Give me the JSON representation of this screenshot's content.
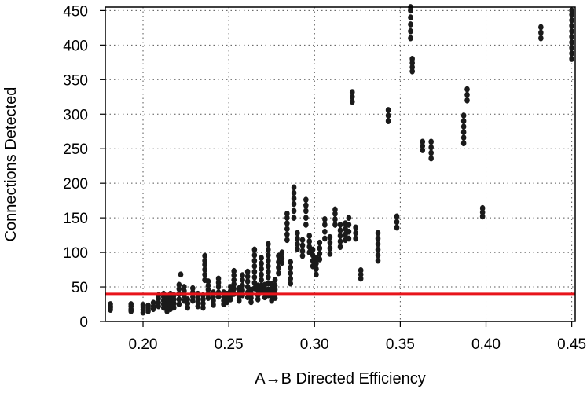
{
  "chart_data": {
    "type": "scatter",
    "xlabel": "A→B Directed Efficiency",
    "ylabel": "Connections Detected",
    "xlim": [
      0.178,
      0.452
    ],
    "ylim": [
      0,
      455
    ],
    "x_ticks": [
      0.2,
      0.25,
      0.3,
      0.35,
      0.4,
      0.45
    ],
    "x_tick_labels": [
      "0.20",
      "0.25",
      "0.30",
      "0.35",
      "0.40",
      "0.45"
    ],
    "y_ticks": [
      0,
      50,
      100,
      150,
      200,
      250,
      300,
      350,
      400,
      450
    ],
    "y_tick_labels": [
      "0",
      "50",
      "100",
      "150",
      "200",
      "250",
      "300",
      "350",
      "400",
      "450"
    ],
    "grid": "dotted",
    "threshold_line": {
      "y": 40,
      "color": "#e8141b"
    },
    "marker_color": "#1a1a1a",
    "clusters": [
      {
        "x": 0.181,
        "y": [
          17,
          20,
          22,
          25
        ]
      },
      {
        "x": 0.193,
        "y": [
          15,
          18,
          22,
          25
        ]
      },
      {
        "x": 0.2,
        "y": [
          13,
          17,
          21,
          24
        ]
      },
      {
        "x": 0.203,
        "y": [
          15,
          19,
          23
        ]
      },
      {
        "x": 0.206,
        "y": [
          18,
          22,
          27
        ]
      },
      {
        "x": 0.209,
        "y": [
          22,
          27,
          33,
          38
        ]
      },
      {
        "x": 0.212,
        "y": [
          20,
          25,
          30,
          36,
          40
        ]
      },
      {
        "x": 0.214,
        "y": [
          15,
          20,
          26,
          32,
          37
        ]
      },
      {
        "x": 0.216,
        "y": [
          18,
          24,
          30,
          36,
          40
        ]
      },
      {
        "x": 0.218,
        "y": [
          20,
          26,
          32,
          38
        ]
      },
      {
        "x": 0.221,
        "y": [
          25,
          32,
          40,
          47,
          53
        ]
      },
      {
        "x": 0.222,
        "y": [
          68
        ]
      },
      {
        "x": 0.224,
        "y": [
          30,
          37,
          44,
          50
        ]
      },
      {
        "x": 0.226,
        "y": [
          20,
          26,
          32
        ]
      },
      {
        "x": 0.229,
        "y": [
          30,
          36,
          42,
          48
        ]
      },
      {
        "x": 0.232,
        "y": [
          22,
          28,
          34,
          40
        ]
      },
      {
        "x": 0.235,
        "y": [
          20,
          26,
          32,
          38
        ]
      },
      {
        "x": 0.236,
        "y": [
          60,
          68,
          75,
          82,
          88,
          95
        ]
      },
      {
        "x": 0.238,
        "y": [
          34,
          40,
          46,
          52,
          58
        ]
      },
      {
        "x": 0.241,
        "y": [
          24,
          30,
          36,
          42
        ]
      },
      {
        "x": 0.244,
        "y": [
          36,
          42,
          50,
          56,
          62
        ]
      },
      {
        "x": 0.247,
        "y": [
          25,
          30,
          36,
          42
        ]
      },
      {
        "x": 0.249,
        "y": [
          28,
          34,
          40
        ]
      },
      {
        "x": 0.251,
        "y": [
          32,
          38,
          44,
          50
        ]
      },
      {
        "x": 0.253,
        "y": [
          40,
          47,
          54,
          60,
          67,
          73
        ]
      },
      {
        "x": 0.256,
        "y": [
          30,
          36,
          42,
          48
        ]
      },
      {
        "x": 0.258,
        "y": [
          38,
          45,
          52,
          60,
          67
        ]
      },
      {
        "x": 0.261,
        "y": [
          35,
          42,
          50,
          58,
          65,
          72
        ]
      },
      {
        "x": 0.263,
        "y": [
          28,
          34,
          40,
          46
        ]
      },
      {
        "x": 0.265,
        "y": [
          48,
          56,
          64,
          72,
          80,
          88,
          96,
          104
        ]
      },
      {
        "x": 0.267,
        "y": [
          32,
          38,
          45,
          52
        ]
      },
      {
        "x": 0.269,
        "y": [
          45,
          52,
          60,
          68,
          76,
          84,
          92
        ]
      },
      {
        "x": 0.271,
        "y": [
          35,
          41,
          47,
          53
        ]
      },
      {
        "x": 0.273,
        "y": [
          38,
          46,
          55,
          64,
          72,
          80,
          88,
          96,
          104,
          112
        ]
      },
      {
        "x": 0.275,
        "y": [
          30,
          36,
          42,
          48,
          54
        ]
      },
      {
        "x": 0.277,
        "y": [
          34,
          40,
          46,
          52,
          60
        ]
      },
      {
        "x": 0.279,
        "y": [
          70,
          78,
          86,
          95
        ]
      },
      {
        "x": 0.281,
        "y": [
          85,
          92,
          100
        ]
      },
      {
        "x": 0.284,
        "y": [
          118,
          126,
          134,
          142,
          150,
          156
        ]
      },
      {
        "x": 0.286,
        "y": [
          55,
          62,
          70,
          78,
          86
        ]
      },
      {
        "x": 0.288,
        "y": [
          150,
          160,
          170,
          178,
          186,
          194
        ]
      },
      {
        "x": 0.29,
        "y": [
          105,
          112,
          120,
          128
        ]
      },
      {
        "x": 0.293,
        "y": [
          95,
          102,
          110,
          118
        ]
      },
      {
        "x": 0.295,
        "y": [
          140,
          150,
          160,
          168,
          176
        ]
      },
      {
        "x": 0.297,
        "y": [
          100,
          108,
          116,
          124
        ]
      },
      {
        "x": 0.299,
        "y": [
          80,
          88,
          96,
          104
        ]
      },
      {
        "x": 0.301,
        "y": [
          68,
          76,
          84,
          92
        ]
      },
      {
        "x": 0.303,
        "y": [
          90,
          98,
          106,
          114
        ]
      },
      {
        "x": 0.306,
        "y": [
          120,
          130,
          140,
          148
        ]
      },
      {
        "x": 0.309,
        "y": [
          98,
          106,
          114,
          122
        ]
      },
      {
        "x": 0.312,
        "y": [
          140,
          148,
          156,
          162
        ]
      },
      {
        "x": 0.315,
        "y": [
          108,
          116,
          124,
          132,
          140
        ]
      },
      {
        "x": 0.318,
        "y": [
          118,
          126,
          134,
          142
        ]
      },
      {
        "x": 0.32,
        "y": [
          120,
          130,
          140,
          150
        ]
      },
      {
        "x": 0.322,
        "y": [
          318,
          325,
          332
        ]
      },
      {
        "x": 0.324,
        "y": [
          120,
          128,
          136
        ]
      },
      {
        "x": 0.327,
        "y": [
          62,
          68,
          74
        ]
      },
      {
        "x": 0.337,
        "y": [
          88,
          96,
          104,
          112,
          120,
          128
        ]
      },
      {
        "x": 0.343,
        "y": [
          290,
          298,
          306
        ]
      },
      {
        "x": 0.348,
        "y": [
          136,
          144,
          152
        ]
      },
      {
        "x": 0.356,
        "y": [
          410,
          420,
          430,
          440,
          450,
          455
        ]
      },
      {
        "x": 0.357,
        "y": [
          362,
          368,
          374,
          380
        ]
      },
      {
        "x": 0.363,
        "y": [
          248,
          254,
          260
        ]
      },
      {
        "x": 0.368,
        "y": [
          236,
          244,
          252,
          260
        ]
      },
      {
        "x": 0.387,
        "y": [
          258,
          266,
          274,
          282,
          290,
          298
        ]
      },
      {
        "x": 0.389,
        "y": [
          320,
          328,
          336
        ]
      },
      {
        "x": 0.398,
        "y": [
          152,
          158,
          164
        ]
      },
      {
        "x": 0.432,
        "y": [
          410,
          418,
          426
        ]
      },
      {
        "x": 0.45,
        "y": [
          380,
          388,
          396,
          404,
          412,
          420,
          428,
          436,
          444,
          450
        ]
      }
    ]
  }
}
